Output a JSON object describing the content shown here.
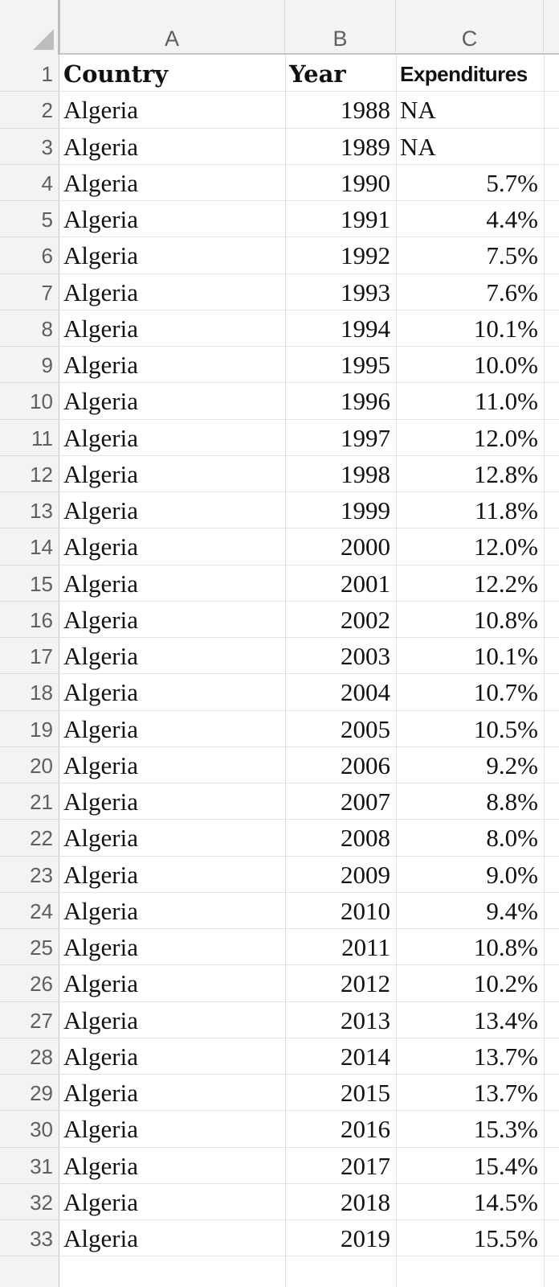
{
  "columns": [
    "A",
    "B",
    "C"
  ],
  "header": {
    "country": "Country",
    "year": "Year",
    "expenditures": "Expenditures"
  },
  "rows": [
    {
      "row": "2",
      "country": "Algeria",
      "year": "1988",
      "value": "NA"
    },
    {
      "row": "3",
      "country": "Algeria",
      "year": "1989",
      "value": "NA"
    },
    {
      "row": "4",
      "country": "Algeria",
      "year": "1990",
      "value": "5.7%"
    },
    {
      "row": "5",
      "country": "Algeria",
      "year": "1991",
      "value": "4.4%"
    },
    {
      "row": "6",
      "country": "Algeria",
      "year": "1992",
      "value": "7.5%"
    },
    {
      "row": "7",
      "country": "Algeria",
      "year": "1993",
      "value": "7.6%"
    },
    {
      "row": "8",
      "country": "Algeria",
      "year": "1994",
      "value": "10.1%"
    },
    {
      "row": "9",
      "country": "Algeria",
      "year": "1995",
      "value": "10.0%"
    },
    {
      "row": "10",
      "country": "Algeria",
      "year": "1996",
      "value": "11.0%"
    },
    {
      "row": "11",
      "country": "Algeria",
      "year": "1997",
      "value": "12.0%"
    },
    {
      "row": "12",
      "country": "Algeria",
      "year": "1998",
      "value": "12.8%"
    },
    {
      "row": "13",
      "country": "Algeria",
      "year": "1999",
      "value": "11.8%"
    },
    {
      "row": "14",
      "country": "Algeria",
      "year": "2000",
      "value": "12.0%"
    },
    {
      "row": "15",
      "country": "Algeria",
      "year": "2001",
      "value": "12.2%"
    },
    {
      "row": "16",
      "country": "Algeria",
      "year": "2002",
      "value": "10.8%"
    },
    {
      "row": "17",
      "country": "Algeria",
      "year": "2003",
      "value": "10.1%"
    },
    {
      "row": "18",
      "country": "Algeria",
      "year": "2004",
      "value": "10.7%"
    },
    {
      "row": "19",
      "country": "Algeria",
      "year": "2005",
      "value": "10.5%"
    },
    {
      "row": "20",
      "country": "Algeria",
      "year": "2006",
      "value": "9.2%"
    },
    {
      "row": "21",
      "country": "Algeria",
      "year": "2007",
      "value": "8.8%"
    },
    {
      "row": "22",
      "country": "Algeria",
      "year": "2008",
      "value": "8.0%"
    },
    {
      "row": "23",
      "country": "Algeria",
      "year": "2009",
      "value": "9.0%"
    },
    {
      "row": "24",
      "country": "Algeria",
      "year": "2010",
      "value": "9.4%"
    },
    {
      "row": "25",
      "country": "Algeria",
      "year": "2011",
      "value": "10.8%"
    },
    {
      "row": "26",
      "country": "Algeria",
      "year": "2012",
      "value": "10.2%"
    },
    {
      "row": "27",
      "country": "Algeria",
      "year": "2013",
      "value": "13.4%"
    },
    {
      "row": "28",
      "country": "Algeria",
      "year": "2014",
      "value": "13.7%"
    },
    {
      "row": "29",
      "country": "Algeria",
      "year": "2015",
      "value": "13.7%"
    },
    {
      "row": "30",
      "country": "Algeria",
      "year": "2016",
      "value": "15.3%"
    },
    {
      "row": "31",
      "country": "Algeria",
      "year": "2017",
      "value": "15.4%"
    },
    {
      "row": "32",
      "country": "Algeria",
      "year": "2018",
      "value": "14.5%"
    },
    {
      "row": "33",
      "country": "Algeria",
      "year": "2019",
      "value": "15.5%"
    }
  ],
  "header_row_number": "1",
  "colors": {
    "header_bg": "#f3f3f3",
    "grid_line": "#e2e2e2",
    "text": "#111111",
    "header_text": "#5f5f5f"
  }
}
